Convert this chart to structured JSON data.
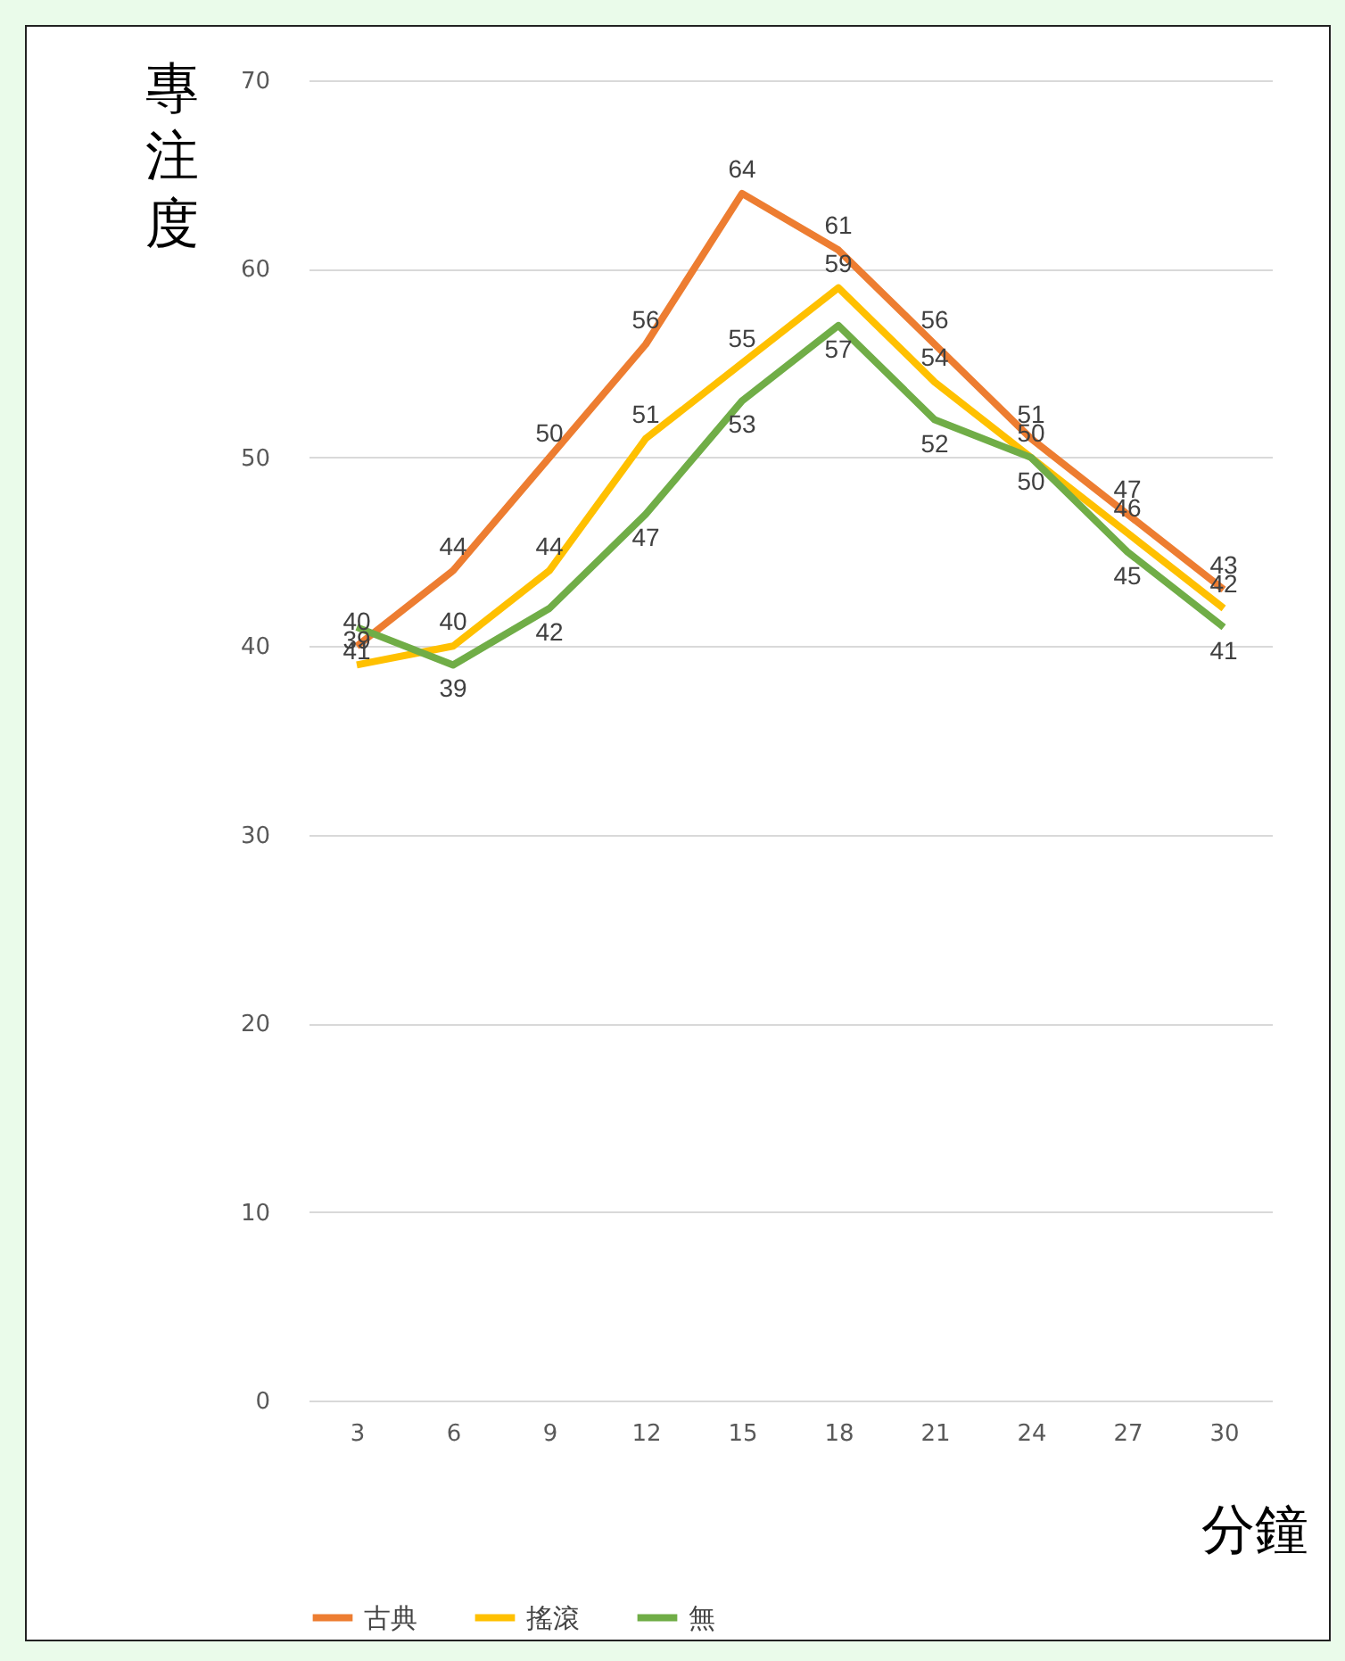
{
  "chart_data": {
    "type": "line",
    "xlabel": "分鐘",
    "ylabel": "專注度",
    "categories": [
      "3",
      "6",
      "9",
      "12",
      "15",
      "18",
      "21",
      "24",
      "27",
      "30"
    ],
    "series": [
      {
        "name": "古典",
        "color": "#ed7d31",
        "values": [
          40,
          44,
          50,
          56,
          64,
          61,
          56,
          51,
          47,
          43
        ]
      },
      {
        "name": "搖滾",
        "color": "#ffc000",
        "values": [
          39,
          40,
          44,
          51,
          55,
          59,
          54,
          50,
          46,
          42
        ]
      },
      {
        "name": "無",
        "color": "#70ad47",
        "values": [
          41,
          39,
          42,
          47,
          53,
          57,
          52,
          50,
          45,
          41
        ]
      }
    ],
    "ylim": [
      0,
      70
    ],
    "yticks": [
      0,
      10,
      20,
      30,
      40,
      50,
      60,
      70
    ],
    "grid": "y",
    "legend": "bottom",
    "data_labels": true,
    "marker": "none",
    "line_style": "solid"
  }
}
